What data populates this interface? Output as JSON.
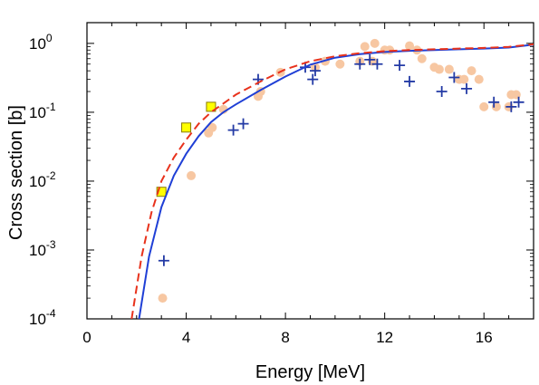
{
  "chart_data": {
    "type": "scatter",
    "title": "",
    "xlabel": "Energy  [MeV]",
    "ylabel": "Cross section  [b]",
    "xlim": [
      0,
      18
    ],
    "ylim": [
      0.0001,
      2
    ],
    "yscale": "log",
    "xticks": [
      0,
      4,
      8,
      12,
      16
    ],
    "yticks": [
      {
        "value": 0.0001,
        "base": "10",
        "exp": "-4"
      },
      {
        "value": 0.001,
        "base": "10",
        "exp": "-3"
      },
      {
        "value": 0.01,
        "base": "10",
        "exp": "-2"
      },
      {
        "value": 0.1,
        "base": "10",
        "exp": "-1"
      },
      {
        "value": 1,
        "base": "10",
        "exp": "0"
      }
    ],
    "grid": false,
    "legend": "none",
    "series": [
      {
        "kind": "line",
        "style": "solid",
        "color": "#1f3fd6",
        "x": [
          2.1,
          2.5,
          3.0,
          3.5,
          4.0,
          4.5,
          5.0,
          5.5,
          6.0,
          7.0,
          8.0,
          9.0,
          10.0,
          11.0,
          12.0,
          13.0,
          14.0,
          15.0,
          16.0,
          17.0,
          18.0
        ],
        "y": [
          0.0001,
          0.0008,
          0.0042,
          0.012,
          0.025,
          0.045,
          0.072,
          0.1,
          0.13,
          0.21,
          0.33,
          0.49,
          0.62,
          0.7,
          0.75,
          0.78,
          0.8,
          0.82,
          0.84,
          0.87,
          0.96
        ]
      },
      {
        "kind": "line",
        "style": "dashed",
        "color": "#e8321c",
        "x": [
          1.8,
          2.2,
          2.6,
          3.0,
          3.5,
          4.0,
          4.5,
          5.0,
          6.0,
          7.0,
          8.0,
          9.0,
          10.0,
          11.0,
          12.0,
          13.0,
          14.0,
          15.0,
          16.0,
          17.0,
          18.0
        ],
        "y": [
          0.0001,
          0.0008,
          0.0035,
          0.01,
          0.022,
          0.04,
          0.068,
          0.1,
          0.18,
          0.28,
          0.42,
          0.55,
          0.65,
          0.72,
          0.77,
          0.8,
          0.82,
          0.84,
          0.86,
          0.89,
          0.97
        ]
      },
      {
        "kind": "points",
        "marker": "circle",
        "color": "#f7c7a2",
        "x": [
          3.05,
          4.2,
          4.9,
          5.05,
          5.5,
          6.9,
          7.0,
          7.8,
          9.2,
          9.6,
          10.2,
          11.0,
          11.2,
          11.5,
          11.6,
          12.0,
          12.2,
          13.0,
          13.3,
          13.5,
          14.0,
          14.2,
          14.6,
          15.0,
          15.2,
          15.5,
          15.8,
          16.0,
          16.5,
          17.0,
          17.1,
          17.3
        ],
        "y": [
          0.0002,
          0.012,
          0.05,
          0.06,
          0.11,
          0.17,
          0.2,
          0.38,
          0.45,
          0.55,
          0.5,
          0.55,
          0.9,
          0.55,
          1.0,
          0.8,
          0.8,
          0.92,
          0.8,
          0.6,
          0.45,
          0.42,
          0.42,
          0.3,
          0.3,
          0.4,
          0.3,
          0.12,
          0.12,
          0.12,
          0.18,
          0.18
        ]
      },
      {
        "kind": "points",
        "marker": "plus",
        "color": "#233aa5",
        "x": [
          3.1,
          5.9,
          6.3,
          6.9,
          8.8,
          9.1,
          9.2,
          11.0,
          11.4,
          11.7,
          12.6,
          13.0,
          14.3,
          14.8,
          15.3,
          16.4,
          17.1,
          17.4
        ],
        "y": [
          0.0007,
          0.055,
          0.068,
          0.3,
          0.45,
          0.3,
          0.4,
          0.5,
          0.58,
          0.5,
          0.48,
          0.28,
          0.2,
          0.32,
          0.22,
          0.14,
          0.12,
          0.14
        ]
      },
      {
        "kind": "points",
        "marker": "square",
        "color": "#ffff00",
        "x": [
          3.0,
          4.0,
          5.0
        ],
        "y": [
          0.007,
          0.06,
          0.12
        ]
      }
    ]
  }
}
